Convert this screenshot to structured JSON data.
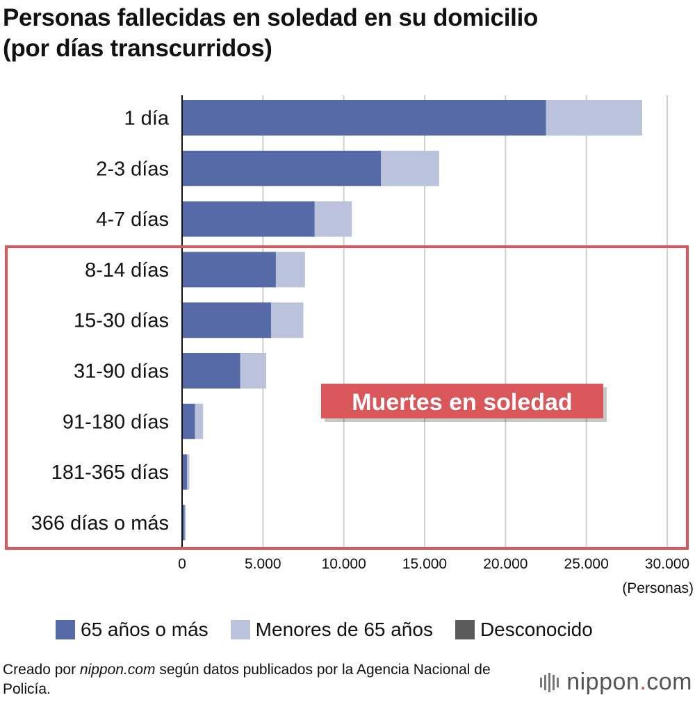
{
  "title_line1": "Personas fallecidas en soledad en su domicilio",
  "title_line2": "(por días transcurridos)",
  "chart_data": {
    "type": "bar",
    "orientation": "horizontal",
    "stacked": true,
    "categories": [
      "1 día",
      "2-3 días",
      "4-7 días",
      "8-14 días",
      "15-30 días",
      "31-90 días",
      "91-180 días",
      "181-365 días",
      "366 días o más"
    ],
    "series": [
      {
        "name": "65 años o más",
        "color": "#566aa7",
        "values": [
          22500,
          12300,
          8200,
          5800,
          5500,
          3600,
          800,
          300,
          150
        ]
      },
      {
        "name": "Menores de 65 años",
        "color": "#bbc2dc",
        "values": [
          5950,
          3600,
          2300,
          1800,
          2000,
          1600,
          500,
          150,
          80
        ]
      },
      {
        "name": "Desconocido",
        "color": "#5b5b5b",
        "values": [
          0,
          0,
          0,
          0,
          0,
          0,
          0,
          0,
          0
        ]
      }
    ],
    "xlim": [
      0,
      30000
    ],
    "xticks": [
      0,
      5000,
      10000,
      15000,
      20000,
      25000,
      30000
    ],
    "xtick_labels": [
      "0",
      "5.000",
      "10.000",
      "15.000",
      "20.000",
      "25.000",
      "30.000"
    ],
    "xlabel": "(Personas)",
    "grid": true,
    "annotation": "Muertes en soledad"
  },
  "source_prefix": "Creado por ",
  "source_site": "nippon.com",
  "source_suffix": " según datos publicados por la Agencia Nacional de Policía.",
  "brand_name": "nippon",
  "brand_dot": ".",
  "brand_tld": "com"
}
